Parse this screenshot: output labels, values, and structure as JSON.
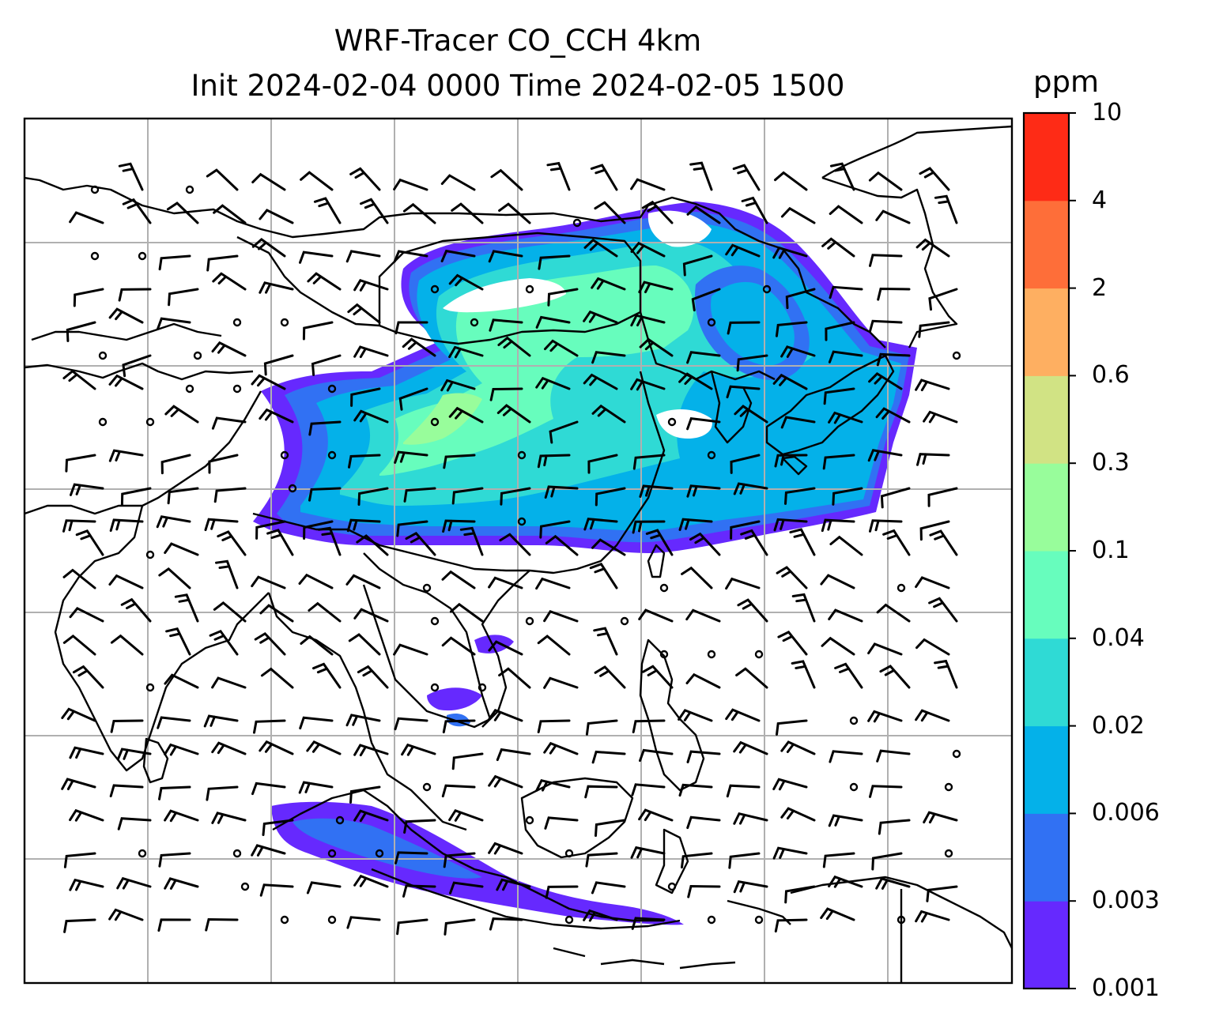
{
  "title": {
    "line1": "WRF-Tracer CO_CCH 4km",
    "line2": "Init 2024-02-04 0000 Time 2024-02-05 1500"
  },
  "colorbar": {
    "unit": "ppm",
    "levels": [
      "0.001",
      "0.003",
      "0.006",
      "0.02",
      "0.04",
      "0.1",
      "0.3",
      "0.6",
      "2",
      "4",
      "10"
    ],
    "colors": [
      "#6629fe",
      "#3171f3",
      "#04b1e9",
      "#2fdad5",
      "#67fdbd",
      "#98fd9b",
      "#d1e384",
      "#feaf61",
      "#fe6e39",
      "#fe2b16"
    ]
  },
  "map": {
    "layers": [
      "coastlines",
      "country-borders",
      "lat-lon-gridlines",
      "tracer-concentration-filled-contours",
      "wind-barbs"
    ]
  }
}
